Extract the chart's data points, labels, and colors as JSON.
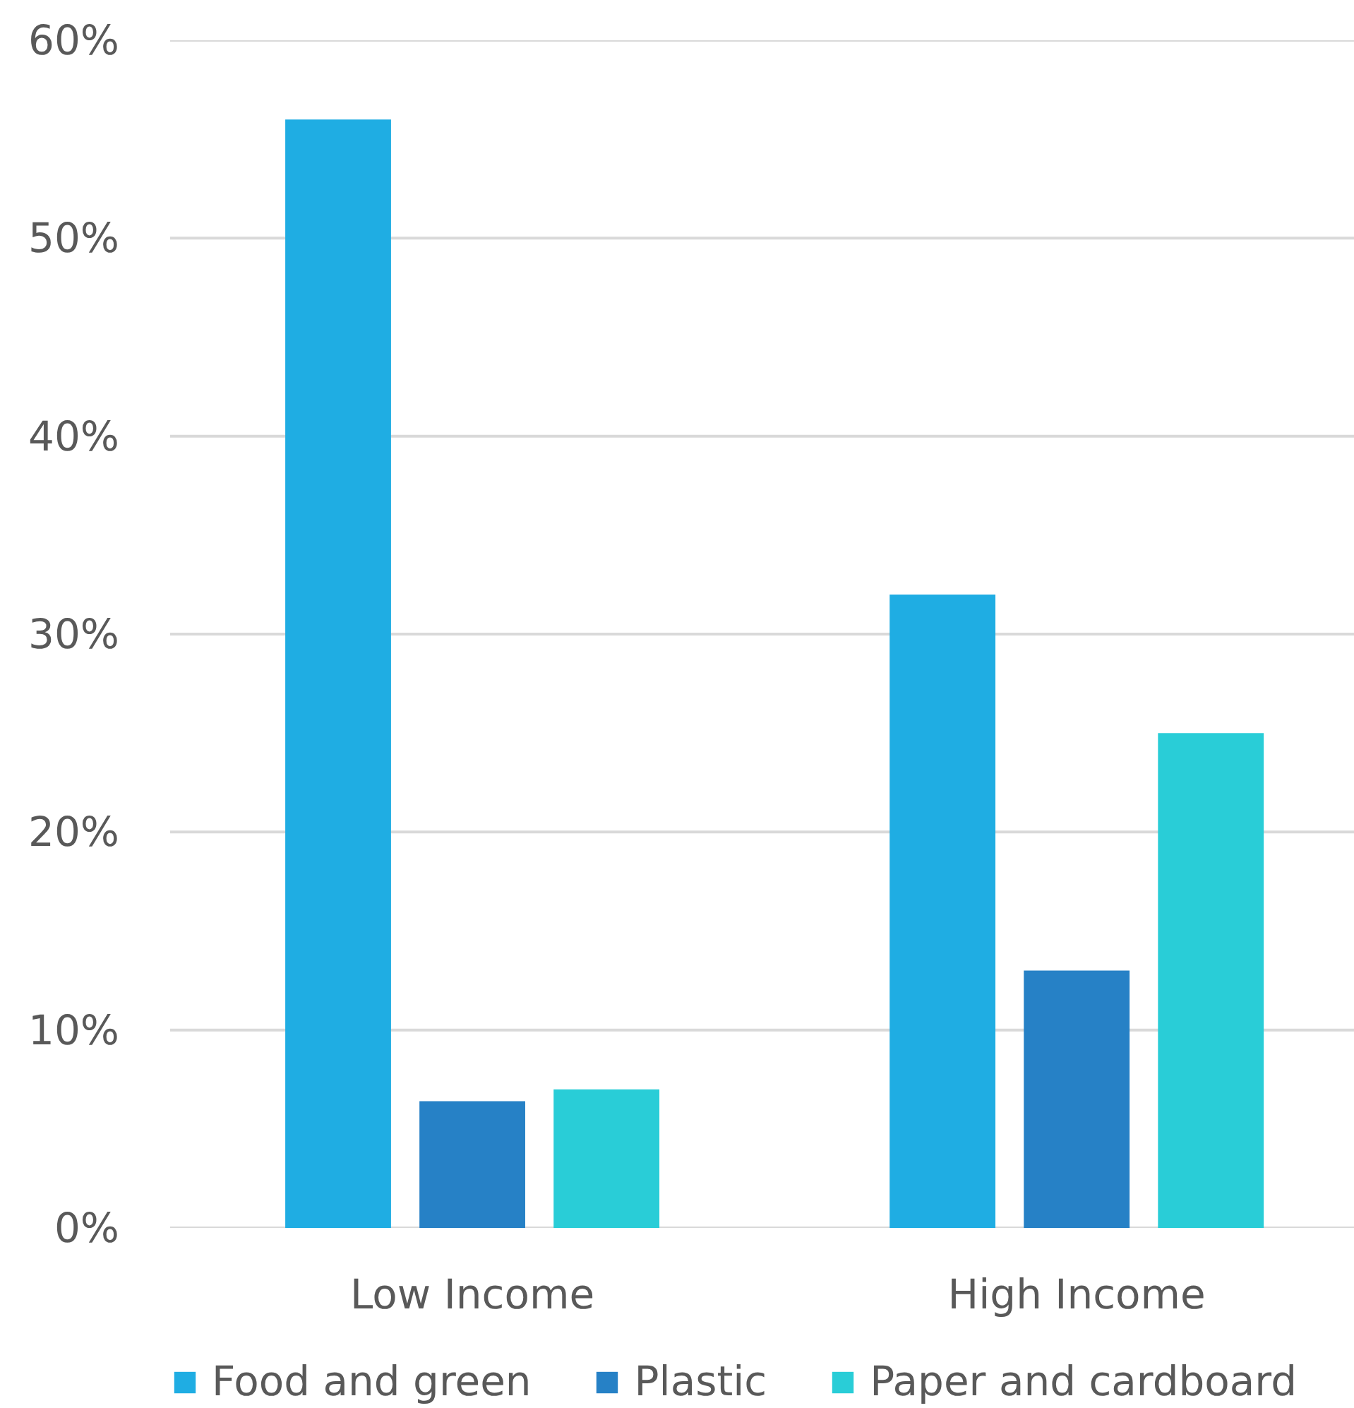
{
  "chart_data": {
    "type": "bar",
    "categories": [
      "Low Income",
      "High Income"
    ],
    "series": [
      {
        "name": "Food and green",
        "color": "#1fade3",
        "values": [
          56,
          32
        ]
      },
      {
        "name": "Plastic",
        "color": "#2681c6",
        "values": [
          6.4,
          13
        ]
      },
      {
        "name": "Paper and cardboard",
        "color": "#29cdd7",
        "values": [
          7,
          25
        ]
      }
    ],
    "ylim": [
      0,
      60
    ],
    "yticks": [
      {
        "value": 0,
        "label": "0%"
      },
      {
        "value": 10,
        "label": "10%"
      },
      {
        "value": 20,
        "label": "20%"
      },
      {
        "value": 30,
        "label": "30%"
      },
      {
        "value": 40,
        "label": "40%"
      },
      {
        "value": 50,
        "label": "50%"
      },
      {
        "value": 60,
        "label": "60%"
      }
    ],
    "grid": "y",
    "legend": "bottom"
  }
}
